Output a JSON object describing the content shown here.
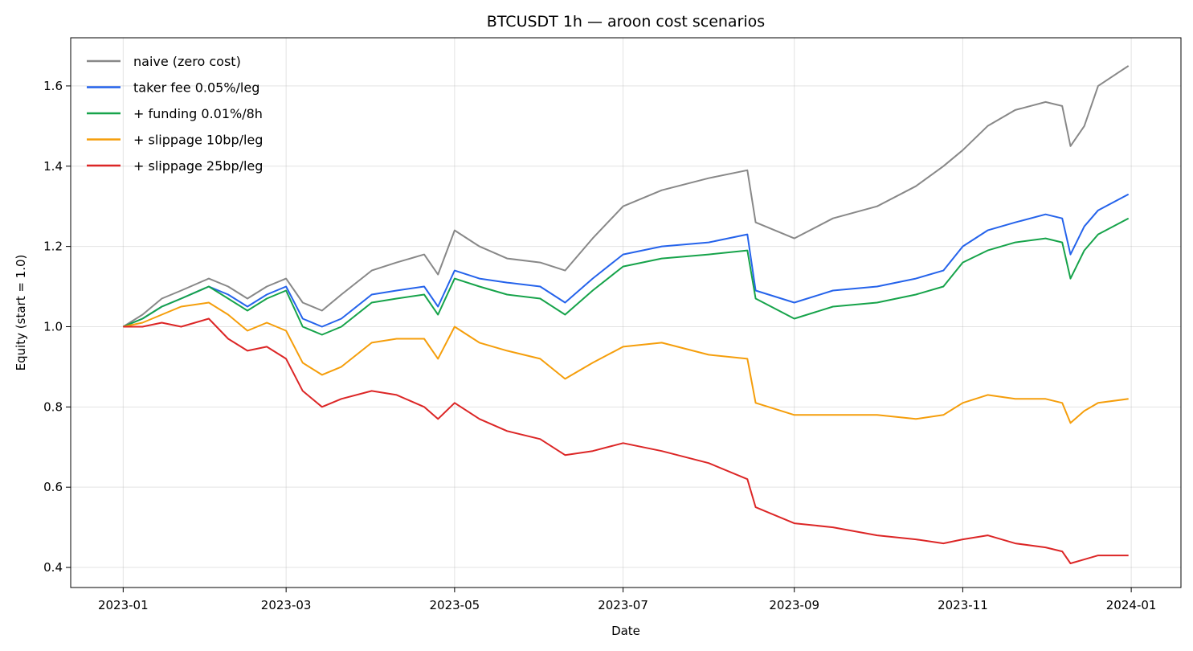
{
  "chart_data": {
    "type": "line",
    "title": "BTCUSDT 1h — aroon cost scenarios",
    "xlabel": "Date",
    "ylabel": "Equity (start = 1.0)",
    "x_type": "date",
    "xlim": [
      "2022-12-13",
      "2024-01-19"
    ],
    "ylim": [
      0.35,
      1.72
    ],
    "x_ticks": [
      "2023-01",
      "2023-03",
      "2023-05",
      "2023-07",
      "2023-09",
      "2023-11",
      "2024-01"
    ],
    "x_tick_dates": [
      "2023-01-01",
      "2023-03-01",
      "2023-05-01",
      "2023-07-01",
      "2023-09-01",
      "2023-11-01",
      "2024-01-01"
    ],
    "y_ticks": [
      0.4,
      0.6,
      0.8,
      1.0,
      1.2,
      1.4,
      1.6
    ],
    "y_tick_labels": [
      "0.4",
      "0.6",
      "0.8",
      "1.0",
      "1.2",
      "1.4",
      "1.6"
    ],
    "grid": true,
    "legend_position": "top-left",
    "series": [
      {
        "name": "naive (zero cost)",
        "color": "#888888",
        "points": [
          [
            "2023-01-01",
            1.0
          ],
          [
            "2023-01-08",
            1.03
          ],
          [
            "2023-01-15",
            1.07
          ],
          [
            "2023-01-22",
            1.09
          ],
          [
            "2023-02-01",
            1.12
          ],
          [
            "2023-02-08",
            1.1
          ],
          [
            "2023-02-15",
            1.07
          ],
          [
            "2023-02-22",
            1.1
          ],
          [
            "2023-03-01",
            1.12
          ],
          [
            "2023-03-07",
            1.06
          ],
          [
            "2023-03-14",
            1.04
          ],
          [
            "2023-03-21",
            1.08
          ],
          [
            "2023-04-01",
            1.14
          ],
          [
            "2023-04-10",
            1.16
          ],
          [
            "2023-04-20",
            1.18
          ],
          [
            "2023-04-25",
            1.13
          ],
          [
            "2023-05-01",
            1.24
          ],
          [
            "2023-05-10",
            1.2
          ],
          [
            "2023-05-20",
            1.17
          ],
          [
            "2023-06-01",
            1.16
          ],
          [
            "2023-06-10",
            1.14
          ],
          [
            "2023-06-20",
            1.22
          ],
          [
            "2023-07-01",
            1.3
          ],
          [
            "2023-07-15",
            1.34
          ],
          [
            "2023-08-01",
            1.37
          ],
          [
            "2023-08-15",
            1.39
          ],
          [
            "2023-08-18",
            1.26
          ],
          [
            "2023-09-01",
            1.22
          ],
          [
            "2023-09-15",
            1.27
          ],
          [
            "2023-10-01",
            1.3
          ],
          [
            "2023-10-15",
            1.35
          ],
          [
            "2023-10-25",
            1.4
          ],
          [
            "2023-11-01",
            1.44
          ],
          [
            "2023-11-10",
            1.5
          ],
          [
            "2023-11-20",
            1.54
          ],
          [
            "2023-12-01",
            1.56
          ],
          [
            "2023-12-07",
            1.55
          ],
          [
            "2023-12-10",
            1.45
          ],
          [
            "2023-12-15",
            1.5
          ],
          [
            "2023-12-20",
            1.6
          ],
          [
            "2023-12-31",
            1.65
          ]
        ]
      },
      {
        "name": "taker fee 0.05%/leg",
        "color": "#2563eb",
        "points": [
          [
            "2023-01-01",
            1.0
          ],
          [
            "2023-01-08",
            1.02
          ],
          [
            "2023-01-15",
            1.05
          ],
          [
            "2023-01-22",
            1.07
          ],
          [
            "2023-02-01",
            1.1
          ],
          [
            "2023-02-08",
            1.08
          ],
          [
            "2023-02-15",
            1.05
          ],
          [
            "2023-02-22",
            1.08
          ],
          [
            "2023-03-01",
            1.1
          ],
          [
            "2023-03-07",
            1.02
          ],
          [
            "2023-03-14",
            1.0
          ],
          [
            "2023-03-21",
            1.02
          ],
          [
            "2023-04-01",
            1.08
          ],
          [
            "2023-04-10",
            1.09
          ],
          [
            "2023-04-20",
            1.1
          ],
          [
            "2023-04-25",
            1.05
          ],
          [
            "2023-05-01",
            1.14
          ],
          [
            "2023-05-10",
            1.12
          ],
          [
            "2023-05-20",
            1.11
          ],
          [
            "2023-06-01",
            1.1
          ],
          [
            "2023-06-10",
            1.06
          ],
          [
            "2023-06-20",
            1.12
          ],
          [
            "2023-07-01",
            1.18
          ],
          [
            "2023-07-15",
            1.2
          ],
          [
            "2023-08-01",
            1.21
          ],
          [
            "2023-08-15",
            1.23
          ],
          [
            "2023-08-18",
            1.09
          ],
          [
            "2023-09-01",
            1.06
          ],
          [
            "2023-09-15",
            1.09
          ],
          [
            "2023-10-01",
            1.1
          ],
          [
            "2023-10-15",
            1.12
          ],
          [
            "2023-10-25",
            1.14
          ],
          [
            "2023-11-01",
            1.2
          ],
          [
            "2023-11-10",
            1.24
          ],
          [
            "2023-11-20",
            1.26
          ],
          [
            "2023-12-01",
            1.28
          ],
          [
            "2023-12-07",
            1.27
          ],
          [
            "2023-12-10",
            1.18
          ],
          [
            "2023-12-15",
            1.25
          ],
          [
            "2023-12-20",
            1.29
          ],
          [
            "2023-12-31",
            1.33
          ]
        ]
      },
      {
        "name": "+ funding 0.01%/8h",
        "color": "#16a34a",
        "points": [
          [
            "2023-01-01",
            1.0
          ],
          [
            "2023-01-08",
            1.02
          ],
          [
            "2023-01-15",
            1.05
          ],
          [
            "2023-01-22",
            1.07
          ],
          [
            "2023-02-01",
            1.1
          ],
          [
            "2023-02-08",
            1.07
          ],
          [
            "2023-02-15",
            1.04
          ],
          [
            "2023-02-22",
            1.07
          ],
          [
            "2023-03-01",
            1.09
          ],
          [
            "2023-03-07",
            1.0
          ],
          [
            "2023-03-14",
            0.98
          ],
          [
            "2023-03-21",
            1.0
          ],
          [
            "2023-04-01",
            1.06
          ],
          [
            "2023-04-10",
            1.07
          ],
          [
            "2023-04-20",
            1.08
          ],
          [
            "2023-04-25",
            1.03
          ],
          [
            "2023-05-01",
            1.12
          ],
          [
            "2023-05-10",
            1.1
          ],
          [
            "2023-05-20",
            1.08
          ],
          [
            "2023-06-01",
            1.07
          ],
          [
            "2023-06-10",
            1.03
          ],
          [
            "2023-06-20",
            1.09
          ],
          [
            "2023-07-01",
            1.15
          ],
          [
            "2023-07-15",
            1.17
          ],
          [
            "2023-08-01",
            1.18
          ],
          [
            "2023-08-15",
            1.19
          ],
          [
            "2023-08-18",
            1.07
          ],
          [
            "2023-09-01",
            1.02
          ],
          [
            "2023-09-15",
            1.05
          ],
          [
            "2023-10-01",
            1.06
          ],
          [
            "2023-10-15",
            1.08
          ],
          [
            "2023-10-25",
            1.1
          ],
          [
            "2023-11-01",
            1.16
          ],
          [
            "2023-11-10",
            1.19
          ],
          [
            "2023-11-20",
            1.21
          ],
          [
            "2023-12-01",
            1.22
          ],
          [
            "2023-12-07",
            1.21
          ],
          [
            "2023-12-10",
            1.12
          ],
          [
            "2023-12-15",
            1.19
          ],
          [
            "2023-12-20",
            1.23
          ],
          [
            "2023-12-31",
            1.27
          ]
        ]
      },
      {
        "name": "+ slippage 10bp/leg",
        "color": "#f59e0b",
        "points": [
          [
            "2023-01-01",
            1.0
          ],
          [
            "2023-01-08",
            1.01
          ],
          [
            "2023-01-15",
            1.03
          ],
          [
            "2023-01-22",
            1.05
          ],
          [
            "2023-02-01",
            1.06
          ],
          [
            "2023-02-08",
            1.03
          ],
          [
            "2023-02-15",
            0.99
          ],
          [
            "2023-02-22",
            1.01
          ],
          [
            "2023-03-01",
            0.99
          ],
          [
            "2023-03-07",
            0.91
          ],
          [
            "2023-03-14",
            0.88
          ],
          [
            "2023-03-21",
            0.9
          ],
          [
            "2023-04-01",
            0.96
          ],
          [
            "2023-04-10",
            0.97
          ],
          [
            "2023-04-20",
            0.97
          ],
          [
            "2023-04-25",
            0.92
          ],
          [
            "2023-05-01",
            1.0
          ],
          [
            "2023-05-10",
            0.96
          ],
          [
            "2023-05-20",
            0.94
          ],
          [
            "2023-06-01",
            0.92
          ],
          [
            "2023-06-10",
            0.87
          ],
          [
            "2023-06-20",
            0.91
          ],
          [
            "2023-07-01",
            0.95
          ],
          [
            "2023-07-15",
            0.96
          ],
          [
            "2023-08-01",
            0.93
          ],
          [
            "2023-08-15",
            0.92
          ],
          [
            "2023-08-18",
            0.81
          ],
          [
            "2023-09-01",
            0.78
          ],
          [
            "2023-09-15",
            0.78
          ],
          [
            "2023-10-01",
            0.78
          ],
          [
            "2023-10-15",
            0.77
          ],
          [
            "2023-10-25",
            0.78
          ],
          [
            "2023-11-01",
            0.81
          ],
          [
            "2023-11-10",
            0.83
          ],
          [
            "2023-11-20",
            0.82
          ],
          [
            "2023-12-01",
            0.82
          ],
          [
            "2023-12-07",
            0.81
          ],
          [
            "2023-12-10",
            0.76
          ],
          [
            "2023-12-15",
            0.79
          ],
          [
            "2023-12-20",
            0.81
          ],
          [
            "2023-12-31",
            0.82
          ]
        ]
      },
      {
        "name": "+ slippage 25bp/leg",
        "color": "#dc2626",
        "points": [
          [
            "2023-01-01",
            1.0
          ],
          [
            "2023-01-08",
            1.0
          ],
          [
            "2023-01-15",
            1.01
          ],
          [
            "2023-01-22",
            1.0
          ],
          [
            "2023-02-01",
            1.02
          ],
          [
            "2023-02-08",
            0.97
          ],
          [
            "2023-02-15",
            0.94
          ],
          [
            "2023-02-22",
            0.95
          ],
          [
            "2023-03-01",
            0.92
          ],
          [
            "2023-03-07",
            0.84
          ],
          [
            "2023-03-14",
            0.8
          ],
          [
            "2023-03-21",
            0.82
          ],
          [
            "2023-04-01",
            0.84
          ],
          [
            "2023-04-10",
            0.83
          ],
          [
            "2023-04-20",
            0.8
          ],
          [
            "2023-04-25",
            0.77
          ],
          [
            "2023-05-01",
            0.81
          ],
          [
            "2023-05-10",
            0.77
          ],
          [
            "2023-05-20",
            0.74
          ],
          [
            "2023-06-01",
            0.72
          ],
          [
            "2023-06-10",
            0.68
          ],
          [
            "2023-06-20",
            0.69
          ],
          [
            "2023-07-01",
            0.71
          ],
          [
            "2023-07-15",
            0.69
          ],
          [
            "2023-08-01",
            0.66
          ],
          [
            "2023-08-15",
            0.62
          ],
          [
            "2023-08-18",
            0.55
          ],
          [
            "2023-09-01",
            0.51
          ],
          [
            "2023-09-15",
            0.5
          ],
          [
            "2023-10-01",
            0.48
          ],
          [
            "2023-10-15",
            0.47
          ],
          [
            "2023-10-25",
            0.46
          ],
          [
            "2023-11-01",
            0.47
          ],
          [
            "2023-11-10",
            0.48
          ],
          [
            "2023-11-20",
            0.46
          ],
          [
            "2023-12-01",
            0.45
          ],
          [
            "2023-12-07",
            0.44
          ],
          [
            "2023-12-10",
            0.41
          ],
          [
            "2023-12-15",
            0.42
          ],
          [
            "2023-12-20",
            0.43
          ],
          [
            "2023-12-31",
            0.43
          ]
        ]
      }
    ]
  }
}
